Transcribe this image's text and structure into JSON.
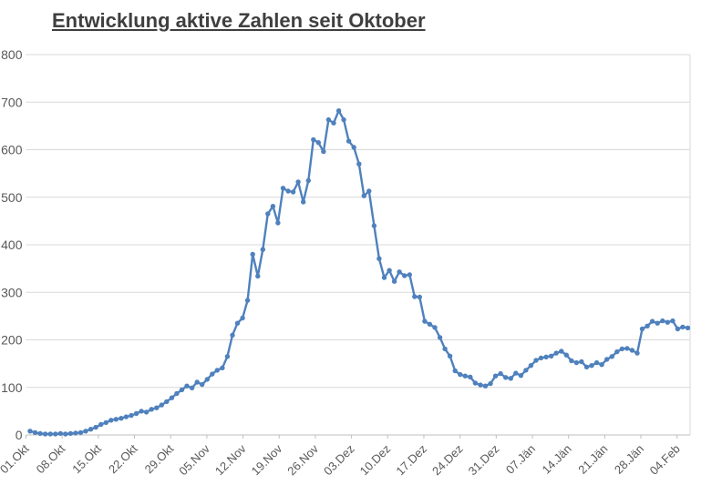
{
  "chart_data": {
    "type": "line",
    "title": "Entwicklung aktive Zahlen seit Oktober",
    "xlabel": "",
    "ylabel": "",
    "ylim": [
      0,
      800
    ],
    "ytick_step": 100,
    "grid": true,
    "legend_position": "none",
    "x_unit": "day",
    "x_tick_labels": [
      "01.Okt",
      "08.Okt",
      "15.Okt",
      "22.Okt",
      "29.Okt",
      "05.Nov",
      "12.Nov",
      "19.Nov",
      "26.Nov",
      "03.Dez",
      "10.Dez",
      "17.Dez",
      "24.Dez",
      "31.Dez",
      "07.Jän",
      "14.Jän",
      "21.Jän",
      "28.Jän",
      "04.Feb"
    ],
    "series": [
      {
        "name": "aktive Zahlen",
        "color": "#4f81bd",
        "marker": "circle",
        "first_x_label": "01.Okt",
        "values": [
          8,
          5,
          3,
          2,
          2,
          2,
          3,
          2,
          3,
          4,
          5,
          8,
          12,
          16,
          22,
          26,
          31,
          33,
          35,
          38,
          41,
          45,
          50,
          48,
          54,
          57,
          63,
          70,
          78,
          87,
          95,
          103,
          99,
          111,
          106,
          117,
          128,
          136,
          141,
          165,
          210,
          235,
          246,
          283,
          380,
          334,
          390,
          465,
          481,
          446,
          519,
          513,
          511,
          532,
          490,
          535,
          621,
          615,
          596,
          663,
          656,
          682,
          663,
          618,
          605,
          570,
          503,
          513,
          440,
          371,
          331,
          346,
          323,
          343,
          335,
          337,
          291,
          290,
          239,
          233,
          226,
          205,
          181,
          166,
          135,
          127,
          124,
          122,
          109,
          105,
          103,
          108,
          124,
          129,
          121,
          119,
          130,
          125,
          136,
          146,
          157,
          162,
          164,
          166,
          172,
          176,
          168,
          156,
          152,
          154,
          143,
          146,
          152,
          148,
          159,
          165,
          175,
          181,
          182,
          178,
          172,
          223,
          229,
          239,
          235,
          240,
          237,
          240,
          223,
          227,
          225
        ]
      }
    ]
  },
  "styles": {
    "line_color": "#4f81bd",
    "grid_color": "#d9d9d9",
    "axis_line_color": "#bfbfbf",
    "axis_text_color": "#595959",
    "title_color": "#3f3f3f",
    "background": "#ffffff"
  }
}
